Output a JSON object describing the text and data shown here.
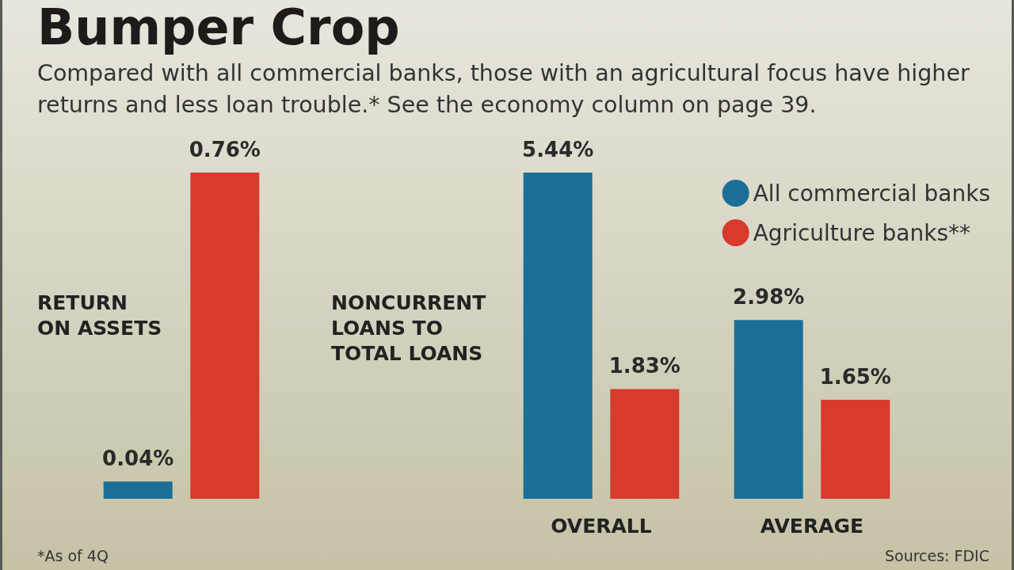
{
  "chart_data": [
    {
      "type": "bar",
      "title": "Bumper Crop",
      "subtitle": "Compared with all commercial banks, those with an agricultural focus have higher returns and less loan trouble.* See the economy column on page 39.",
      "ylabel": "RETURN\nON ASSETS",
      "categories": [
        null
      ],
      "series": [
        {
          "color": "#1b6f96",
          "values": [
            0.04
          ],
          "value_labels": [
            "0.04%"
          ]
        },
        {
          "color": "#d83a2c",
          "values": [
            0.76
          ],
          "value_labels": [
            "0.76%"
          ]
        }
      ],
      "legend": false,
      "annotations": [
        "*As of 4Q",
        "Sources: FDIC"
      ]
    },
    {
      "type": "bar",
      "ylabel": "NONCURRENT\nLOANS TO\nTOTAL LOANS",
      "categories": [
        "OVERALL",
        "AVERAGE"
      ],
      "series": [
        {
          "name": "All commercial banks",
          "color": "#1b6f96",
          "values": [
            5.44,
            2.98
          ],
          "value_labels": [
            "5.44%",
            "2.98%"
          ]
        },
        {
          "name": "Agriculture banks**",
          "color": "#d83a2c",
          "values": [
            1.83,
            1.65
          ],
          "value_labels": [
            "1.83%",
            "1.65%"
          ]
        }
      ],
      "legend": "top right"
    }
  ]
}
